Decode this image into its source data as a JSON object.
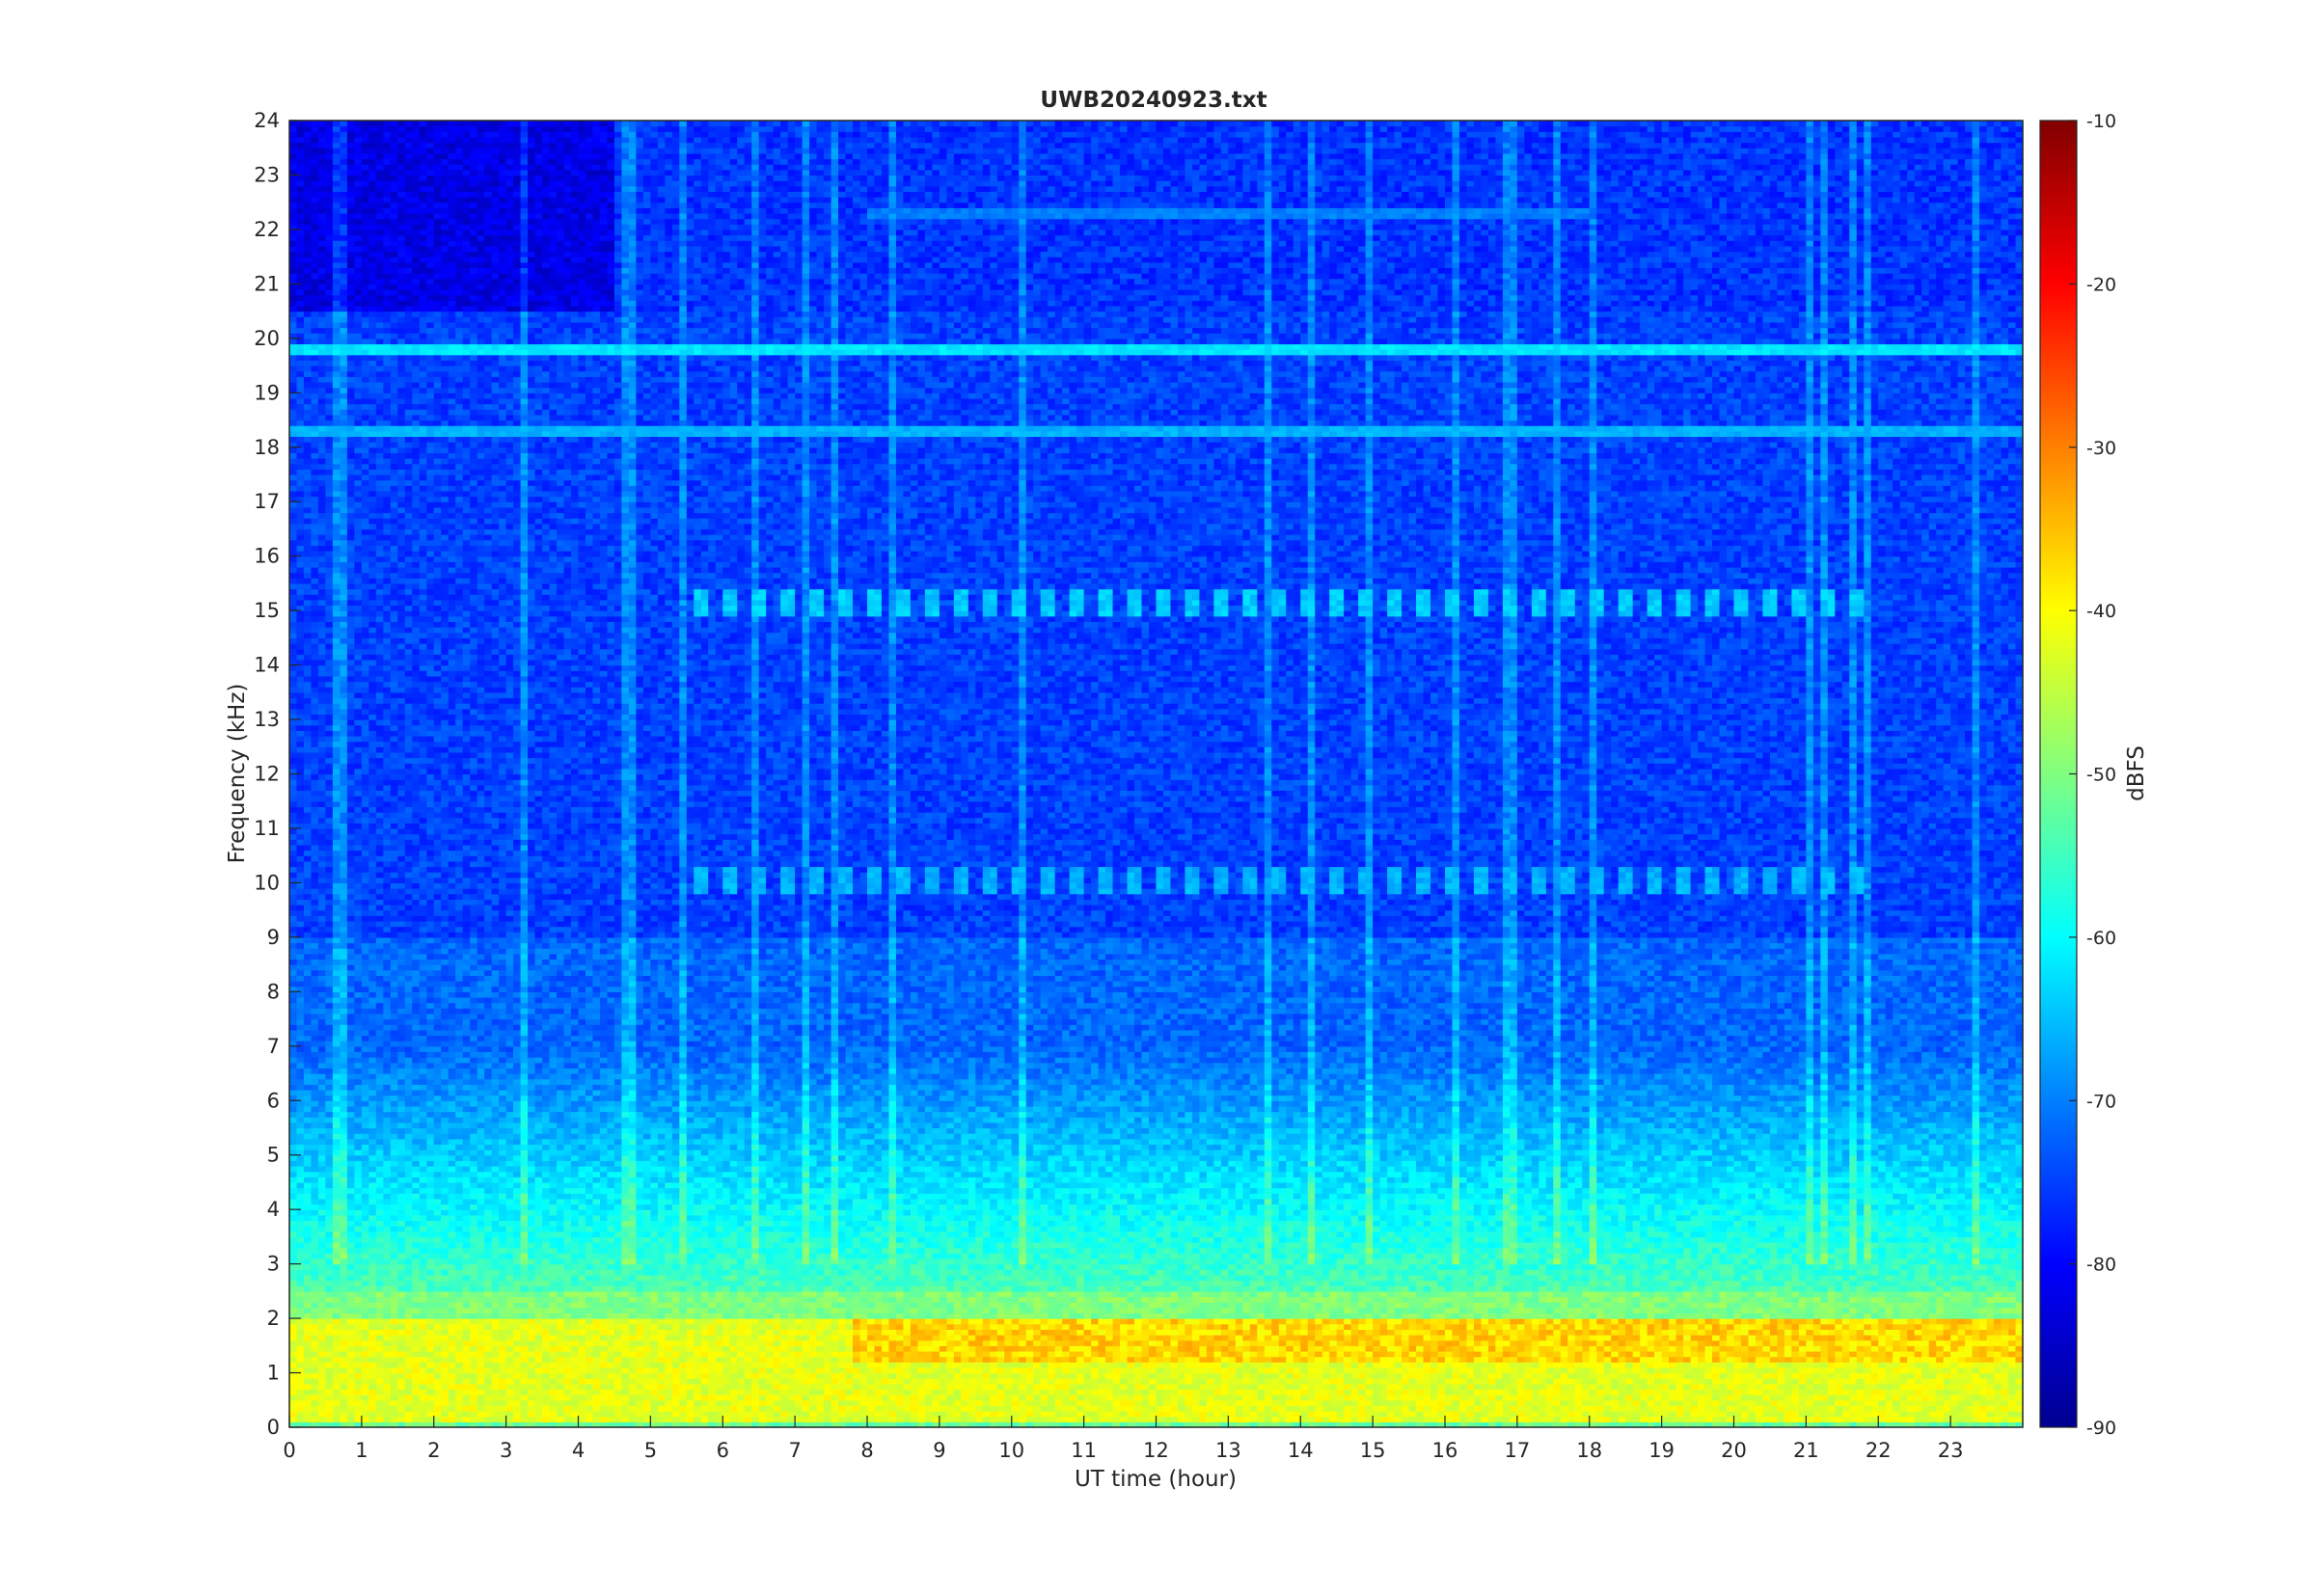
{
  "chart_data": {
    "type": "heatmap",
    "title": "UWB20240923.txt",
    "xlabel": "UT time (hour)",
    "ylabel": "Frequency (kHz)",
    "xlim": [
      0,
      24
    ],
    "ylim": [
      0,
      24
    ],
    "x_ticks": [
      0,
      1,
      2,
      3,
      4,
      5,
      6,
      7,
      8,
      9,
      10,
      11,
      12,
      13,
      14,
      15,
      16,
      17,
      18,
      19,
      20,
      21,
      22,
      23
    ],
    "y_ticks": [
      0,
      1,
      2,
      3,
      4,
      5,
      6,
      7,
      8,
      9,
      10,
      11,
      12,
      13,
      14,
      15,
      16,
      17,
      18,
      19,
      20,
      21,
      22,
      23,
      24
    ],
    "colormap": "jet",
    "colorbar": {
      "label": "dBFS",
      "range": [
        -90,
        -10
      ],
      "ticks": [
        -10,
        -20,
        -30,
        -40,
        -50,
        -60,
        -70,
        -80,
        -90
      ]
    },
    "background_level_dbfs": {
      "top_0_to_4_5h": -82,
      "top_4_5_to_24h": -76,
      "mid": -75,
      "low_0_to_4kHz": -55,
      "base_1_2kHz": -42
    },
    "persistent_lines": [
      {
        "freq_khz": 19.8,
        "level_dbfs": -62,
        "note": "strong continuous tone"
      },
      {
        "freq_khz": 18.3,
        "level_dbfs": -66,
        "note": "continuous tone"
      },
      {
        "freq_khz": 22.3,
        "level_dbfs": -70,
        "from_hour": 8,
        "to_hour": 18
      }
    ],
    "pulsed_bands": [
      {
        "freq_khz_range": [
          14.9,
          15.4
        ],
        "from_hour": 5.5,
        "to_hour": 21.9,
        "level_dbfs": -64
      },
      {
        "freq_khz_range": [
          9.8,
          10.3
        ],
        "from_hour": 5.5,
        "to_hour": 21.9,
        "level_dbfs": -66
      }
    ],
    "intense_band": {
      "freq_khz_range": [
        1.2,
        2.0
      ],
      "from_hour": 7.8,
      "to_hour": 24,
      "level_dbfs": -33
    }
  }
}
